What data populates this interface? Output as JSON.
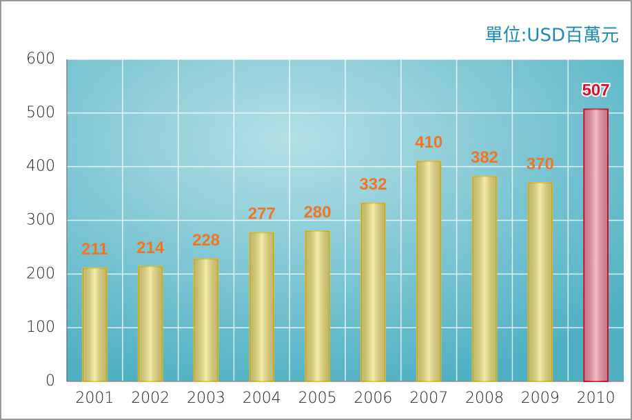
{
  "chart_data": {
    "type": "bar",
    "unit_label": "單位:USD百萬元",
    "categories": [
      "2001",
      "2002",
      "2003",
      "2004",
      "2005",
      "2006",
      "2007",
      "2008",
      "2009",
      "2010"
    ],
    "values": [
      211,
      214,
      228,
      277,
      280,
      332,
      410,
      382,
      370,
      507
    ],
    "colors": [
      "#efe27e",
      "#efe27e",
      "#efe27e",
      "#efe27e",
      "#efe27e",
      "#efe27e",
      "#efe27e",
      "#efe27e",
      "#efe27e",
      "#f295a5"
    ],
    "label_colors": [
      "#f07522",
      "#f07522",
      "#f07522",
      "#f07522",
      "#f07522",
      "#f07522",
      "#f07522",
      "#f07522",
      "#f07522",
      "#d8122e"
    ],
    "ylim": [
      0,
      600
    ],
    "yticks": [
      0,
      100,
      200,
      300,
      400,
      500,
      600
    ],
    "grid": true
  }
}
